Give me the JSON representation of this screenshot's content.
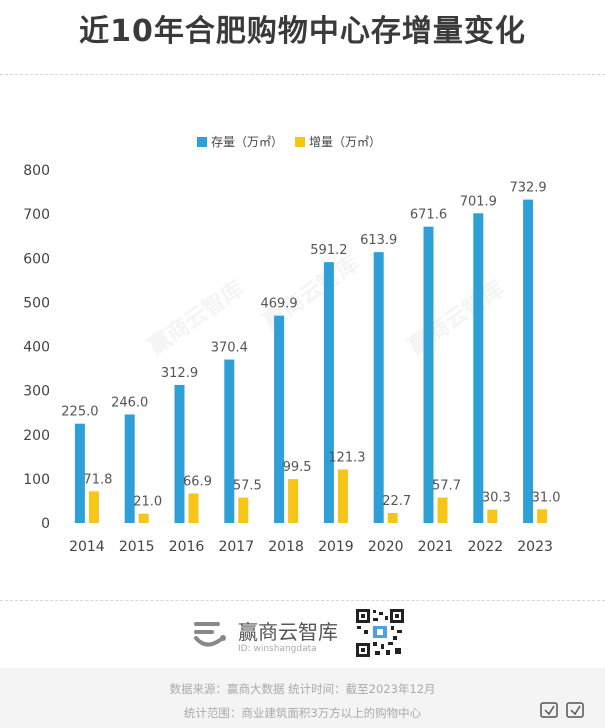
{
  "title": "近10年合肥购物中心存增量变化",
  "chart_data": {
    "type": "bar",
    "categories": [
      "2014",
      "2015",
      "2016",
      "2017",
      "2018",
      "2019",
      "2020",
      "2021",
      "2022",
      "2023"
    ],
    "series": [
      {
        "name": "存量（万㎡）",
        "color": "#2f9fd8",
        "values": [
          225.0,
          246.0,
          312.9,
          370.4,
          469.9,
          591.2,
          613.9,
          671.6,
          701.9,
          732.9
        ]
      },
      {
        "name": "增量（万㎡）",
        "color": "#f5c518",
        "values": [
          71.8,
          21.0,
          66.9,
          57.5,
          99.5,
          121.3,
          22.7,
          57.7,
          30.3,
          31.0
        ]
      }
    ],
    "yticks": [
      "0",
      "100",
      "200",
      "300",
      "400",
      "500",
      "600",
      "700",
      "800"
    ],
    "ylim": [
      0,
      800
    ],
    "grid": false,
    "legend_position": "top-center"
  },
  "brand": {
    "name": "赢商云智库",
    "id": "ID: winshangdata"
  },
  "watermark": "赢商云智库",
  "footnotes": [
    "数据来源：赢商大数据   统计时间：截至2023年12月",
    "统计范围：商业建筑面积3万方以上的购物中心"
  ]
}
